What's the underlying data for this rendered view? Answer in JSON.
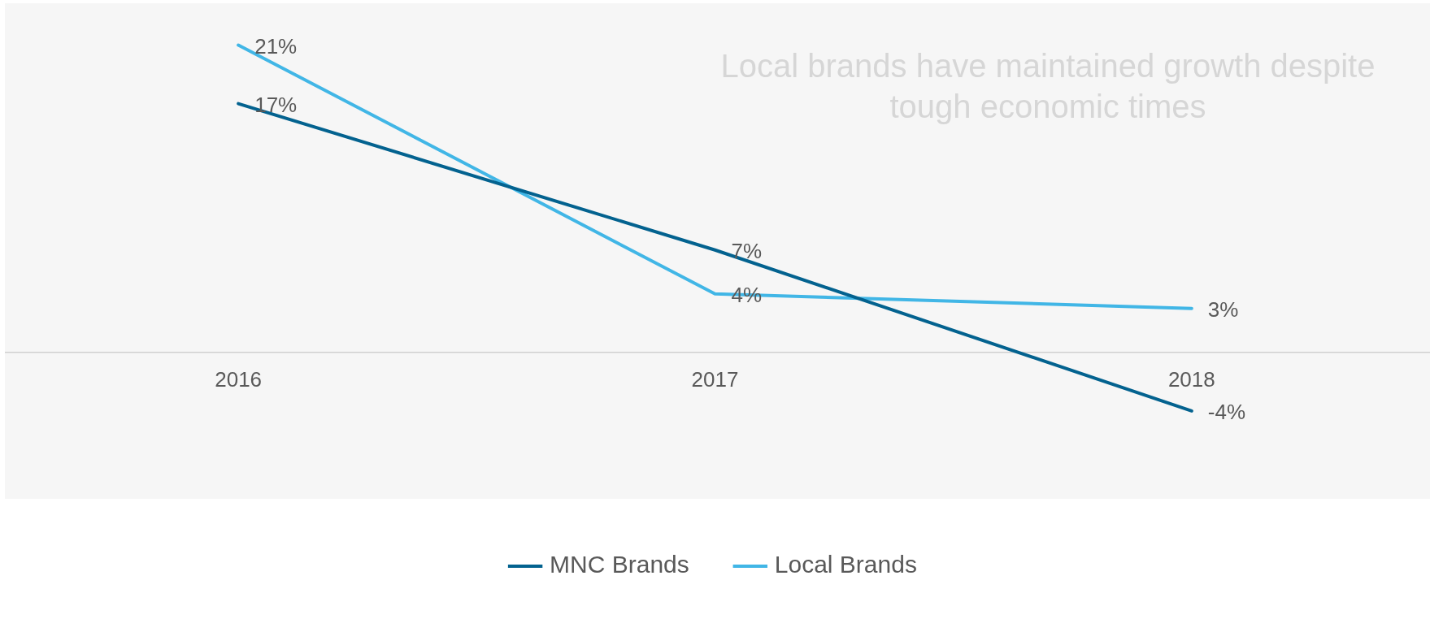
{
  "chart_data": {
    "type": "line",
    "categories": [
      "2016",
      "2017",
      "2018"
    ],
    "series": [
      {
        "name": "MNC Brands",
        "color": "#03628f",
        "values": [
          17,
          7,
          -4
        ],
        "value_labels": [
          "17%",
          "7%",
          "-4%"
        ]
      },
      {
        "name": "Local Brands",
        "color": "#41b6e6",
        "values": [
          21,
          4,
          3
        ],
        "value_labels": [
          "21%",
          "4%",
          "3%"
        ]
      }
    ],
    "legend": "bottom",
    "marker": "none",
    "grid": false,
    "annotations": [
      "Local brands have maintained growth despite tough economic times"
    ]
  }
}
